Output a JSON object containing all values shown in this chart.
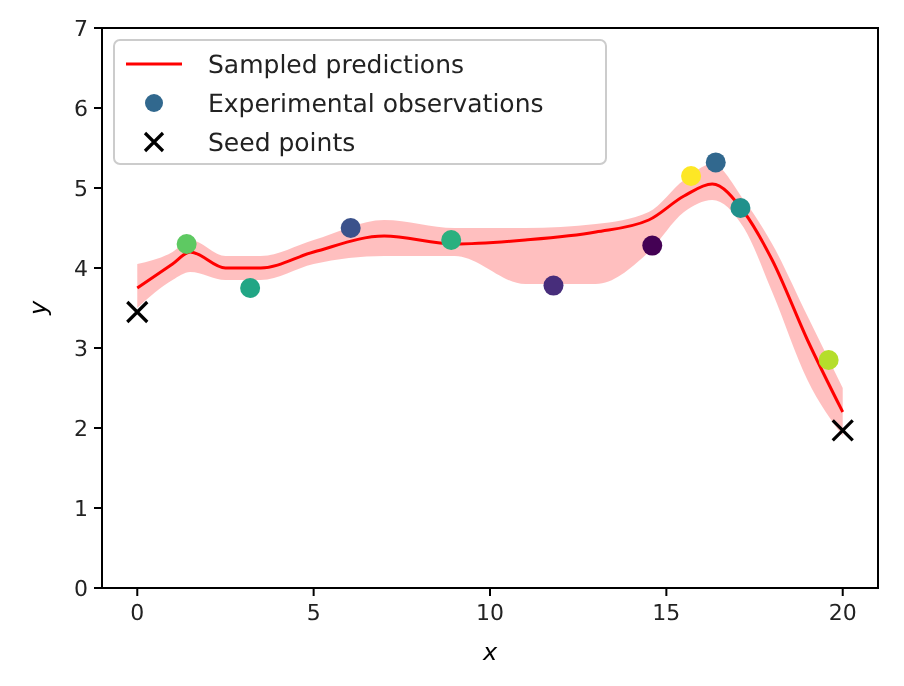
{
  "chart_data": {
    "type": "line",
    "xlabel": "x",
    "ylabel": "y",
    "xlim": [
      -1,
      21
    ],
    "ylim": [
      0,
      7
    ],
    "xticks": [
      0,
      5,
      10,
      15,
      20
    ],
    "yticks": [
      0,
      1,
      2,
      3,
      4,
      5,
      6,
      7
    ],
    "grid": false,
    "legend": "top left",
    "series": [
      {
        "type": "line",
        "name": "Sampled predictions",
        "color": "#ff0000",
        "x": [
          0,
          1,
          1.5,
          2.5,
          3.5,
          5,
          7,
          9,
          11,
          13,
          14.5,
          15.5,
          16.3,
          17.2,
          18,
          19,
          20
        ],
        "values": [
          3.75,
          4.05,
          4.2,
          4.0,
          4.0,
          4.2,
          4.4,
          4.3,
          4.35,
          4.45,
          4.6,
          4.9,
          5.05,
          4.7,
          4.1,
          3.1,
          2.2
        ],
        "lower": [
          3.5,
          3.85,
          3.95,
          3.85,
          3.85,
          4.05,
          4.15,
          4.15,
          3.8,
          3.8,
          4.2,
          4.7,
          4.85,
          4.5,
          3.7,
          2.6,
          1.9
        ],
        "upper": [
          4.05,
          4.2,
          4.35,
          4.15,
          4.15,
          4.35,
          4.6,
          4.5,
          4.5,
          4.55,
          4.7,
          5.1,
          5.3,
          4.85,
          4.3,
          3.4,
          2.5
        ]
      },
      {
        "type": "scatter",
        "name": "Experimental observations",
        "marker": "circle",
        "x": [
          1.4,
          3.2,
          6.05,
          8.9,
          11.8,
          14.6,
          15.7,
          16.4,
          17.1,
          19.6
        ],
        "values": [
          4.3,
          3.75,
          4.5,
          4.35,
          3.78,
          4.28,
          5.15,
          5.32,
          4.75,
          2.85
        ],
        "colors": [
          "#5ec962",
          "#21a685",
          "#3b528b",
          "#2ab07f",
          "#472d7b",
          "#440154",
          "#fde725",
          "#31688e",
          "#21918c",
          "#b5de2b"
        ]
      },
      {
        "type": "scatter",
        "name": "Seed points",
        "color": "#000000",
        "marker": "cross",
        "x": [
          0,
          20
        ],
        "values": [
          3.45,
          1.97
        ]
      }
    ]
  }
}
